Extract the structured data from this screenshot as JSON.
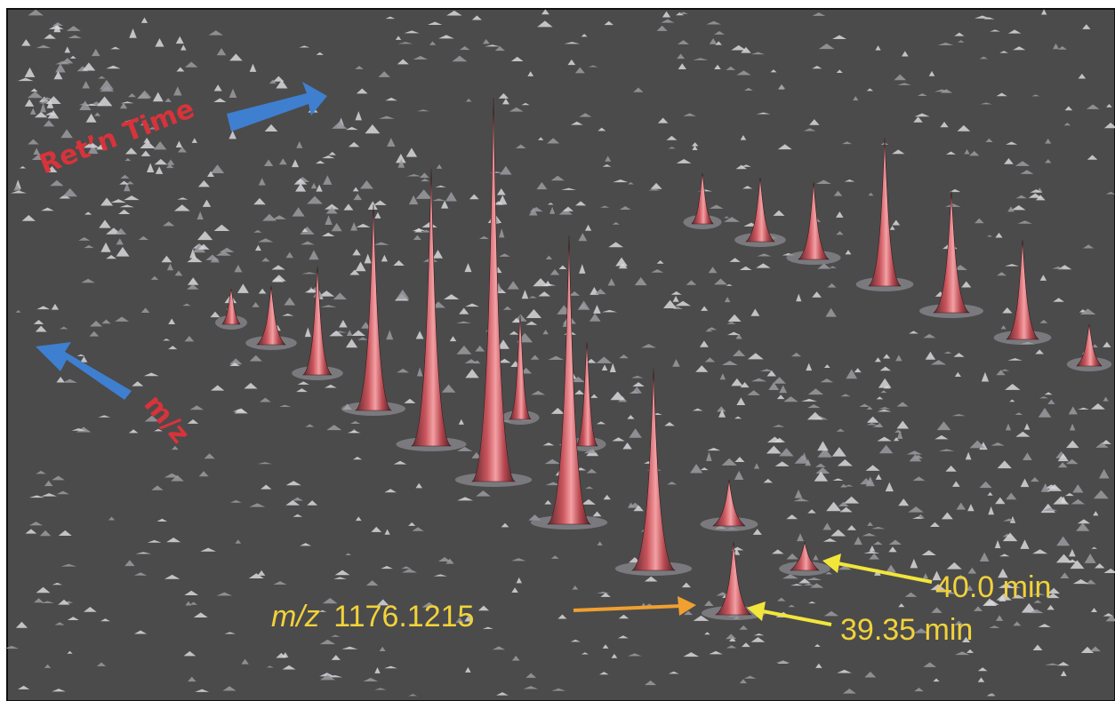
{
  "labels": {
    "retention_time": "Ret’n Time",
    "mz_axis": "m/z"
  },
  "annotations": [
    {
      "prefix": "m/z",
      "text": "1176.1215"
    },
    {
      "text": "40.0 min"
    },
    {
      "text": "39.35 min"
    }
  ]
}
